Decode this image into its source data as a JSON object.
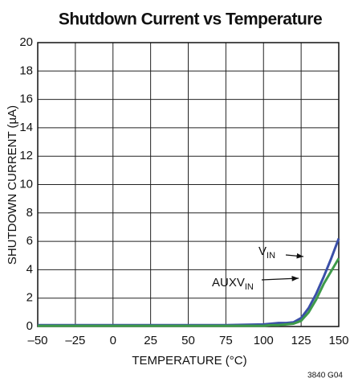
{
  "chart_data": {
    "type": "line",
    "title": "Shutdown Current vs Temperature",
    "xlabel": "TEMPERATURE (°C)",
    "ylabel": "SHUTDOWN CURRENT (µA)",
    "note": "3840 G04",
    "x": [
      -50,
      -25,
      0,
      25,
      50,
      75,
      100,
      105,
      110,
      115,
      120,
      125,
      130,
      135,
      140,
      145,
      150
    ],
    "series": [
      {
        "name": "V",
        "name_sub": "IN",
        "color": "#3a4fa8",
        "values": [
          0.1,
          0.1,
          0.1,
          0.1,
          0.1,
          0.1,
          0.15,
          0.2,
          0.25,
          0.25,
          0.3,
          0.6,
          1.3,
          2.3,
          3.5,
          4.8,
          6.2
        ]
      },
      {
        "name": "AUXV",
        "name_sub": "IN",
        "color": "#3e9a4a",
        "values": [
          0.05,
          0.05,
          0.05,
          0.05,
          0.05,
          0.05,
          0.05,
          0.1,
          0.1,
          0.15,
          0.2,
          0.4,
          1.0,
          1.9,
          3.0,
          3.9,
          4.8
        ]
      }
    ],
    "xlim": [
      -50,
      150
    ],
    "xticks": [
      {
        "value": -50,
        "label": "–50"
      },
      {
        "value": -25,
        "label": "–25"
      },
      0,
      25,
      50,
      75,
      100,
      125,
      150
    ],
    "ylim": [
      0,
      20
    ],
    "yticks": [
      0,
      2,
      4,
      6,
      8,
      10,
      12,
      14,
      16,
      18,
      20
    ],
    "grid": true
  }
}
